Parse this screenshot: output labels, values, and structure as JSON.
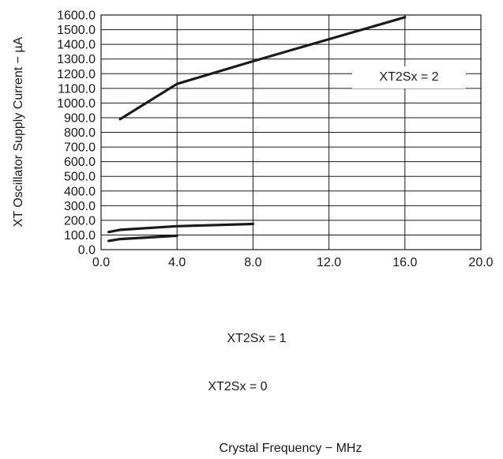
{
  "chart_data": {
    "type": "line",
    "xlabel": "Crystal Frequency − MHz",
    "ylabel": "XT Oscillator Supply Current  − µA",
    "xlim": [
      0,
      20
    ],
    "ylim": [
      0,
      1600
    ],
    "x_ticks": [
      0,
      4,
      8,
      12,
      16,
      20
    ],
    "x_tick_labels": [
      "0.0",
      "4.0",
      "8.0",
      "12.0",
      "16.0",
      "20.0"
    ],
    "y_ticks": [
      0,
      100,
      200,
      300,
      400,
      500,
      600,
      700,
      800,
      900,
      1000,
      1100,
      1200,
      1300,
      1400,
      1500,
      1600
    ],
    "y_tick_labels": [
      "0.0",
      "100.0",
      "200.0",
      "300.0",
      "400.0",
      "500.0",
      "600.0",
      "700.0",
      "800.0",
      "900.0",
      "1000.0",
      "1100.0",
      "1200.0",
      "1300.0",
      "1400.0",
      "1500.0",
      "1600.0"
    ],
    "grid": true,
    "series": [
      {
        "name": "XT2Sx = 2",
        "x": [
          1,
          4,
          8,
          12,
          16
        ],
        "y": [
          890,
          1130,
          1285,
          1435,
          1585
        ]
      },
      {
        "name": "XT2Sx = 1",
        "x": [
          0.4,
          1,
          4,
          8
        ],
        "y": [
          120,
          135,
          160,
          175
        ]
      },
      {
        "name": "XT2Sx = 0",
        "x": [
          0.4,
          1,
          4
        ],
        "y": [
          60,
          72,
          95
        ]
      }
    ],
    "colors": {
      "line": "#1a1a1a",
      "grid": "#1a1a1a",
      "background": "#ffffff"
    }
  }
}
